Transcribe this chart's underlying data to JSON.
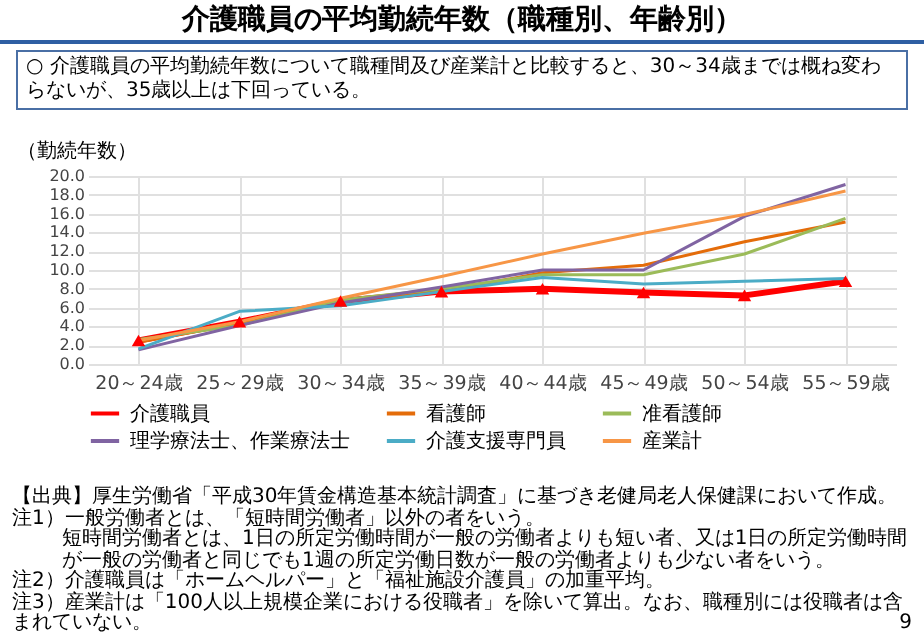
{
  "chart_data": {
    "type": "line",
    "title": "介護職員の平均勤続年数（職種別、年齢別）",
    "subtitle": "○ 介護職員の平均勤続年数について職種間及び産業計と比較すると、30～34歳までは概ね変わらないが、35歳以上は下回っている。",
    "ylabel": "（勤続年数）",
    "categories": [
      "20～24歳",
      "25～29歳",
      "30～34歳",
      "35～39歳",
      "40～44歳",
      "45～49歳",
      "50～54歳",
      "55～59歳"
    ],
    "series": [
      {
        "name": "介護職員",
        "color": "#ff0000",
        "marker": "triangle",
        "values": [
          2.5,
          4.5,
          6.7,
          7.7,
          8.0,
          7.6,
          7.3,
          8.8
        ]
      },
      {
        "name": "看護師",
        "color": "#e46c0a",
        "values": [
          2.3,
          4.3,
          6.8,
          7.7,
          9.7,
          10.5,
          13.0,
          15.1
        ]
      },
      {
        "name": "准看護師",
        "color": "#9bbb59",
        "values": [
          2.6,
          4.1,
          6.8,
          8.0,
          9.5,
          9.5,
          11.7,
          15.5
        ]
      },
      {
        "name": "理学療法士、作業療法士",
        "color": "#8064a2",
        "values": [
          1.5,
          4.1,
          6.5,
          8.2,
          10.0,
          10.0,
          15.7,
          19.1
        ]
      },
      {
        "name": "介護支援専門員",
        "color": "#4bacc6",
        "values": [
          1.6,
          5.6,
          6.2,
          7.7,
          9.2,
          8.5,
          8.8,
          9.1
        ]
      },
      {
        "name": "産業計",
        "color": "#f79646",
        "values": [
          2.5,
          4.5,
          7.0,
          9.3,
          11.7,
          13.9,
          15.9,
          18.4
        ]
      }
    ],
    "ylim": [
      0,
      20
    ],
    "yticks": [
      {
        "value": 0,
        "label": "0.0"
      },
      {
        "value": 2,
        "label": "2.0"
      },
      {
        "value": 4,
        "label": "4.0"
      },
      {
        "value": 6,
        "label": "6.0"
      },
      {
        "value": 8,
        "label": "8.0"
      },
      {
        "value": 10,
        "label": "10.0"
      },
      {
        "value": 12,
        "label": "12.0"
      },
      {
        "value": 14,
        "label": "14.0"
      },
      {
        "value": 16,
        "label": "16.0"
      },
      {
        "value": 18,
        "label": "18.0"
      },
      {
        "value": 20,
        "label": "20.0"
      }
    ],
    "grid": true,
    "legend": "bottom",
    "line_style": "solid",
    "annotations": [
      "【出典】厚生労働省「平成30年賃金構造基本統計調査」に基づき老健局老人保健課において作成。",
      "注1）一般労働者とは、「短時間労働者」以外の者をいう。",
      "短時間労働者とは、1日の所定労働時間が一般の労働者よりも短い者、又は1日の所定労働時間が一般の労働者と同じでも1週の所定労働日数が一般の労働者よりも少ない者をいう。",
      "注2）介護職員は「ホームヘルパー」と「福祉施設介護員」の加重平均。",
      "注3）産業計は「100人以上規模企業における役職者」を除いて算出。なお、職種別には役職者は含まれていない。",
      "9"
    ]
  }
}
